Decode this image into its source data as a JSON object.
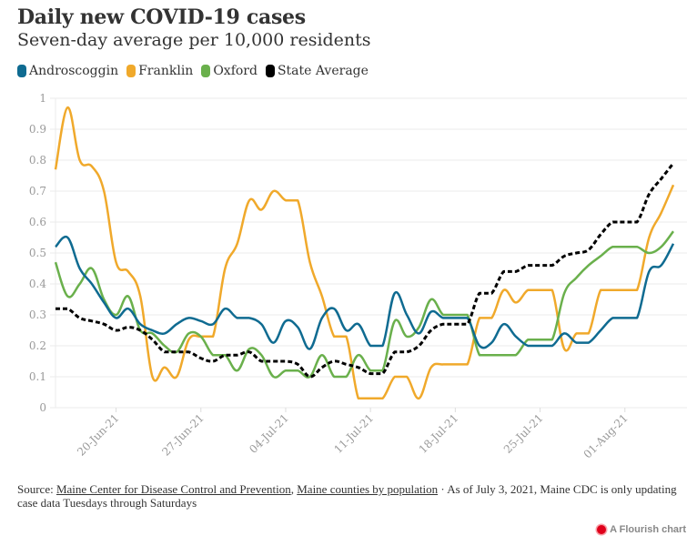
{
  "header": {
    "title": "Daily new COVID-19 cases",
    "subtitle": "Seven-day average per 10,000 residents"
  },
  "legend": [
    {
      "label": "Androscoggin",
      "color": "#0f6b91"
    },
    {
      "label": "Franklin",
      "color": "#f0a92b"
    },
    {
      "label": "Oxford",
      "color": "#6ab04c"
    },
    {
      "label": "State Average",
      "color": "#000000"
    }
  ],
  "footer": {
    "source_prefix": "Source: ",
    "link1": "Maine Center for Disease Control and Prevention",
    "sep": ", ",
    "link2": "Maine counties by population",
    "note": " · As of July 3, 2021, Maine CDC is only updating case data Tuesdays through Saturdays",
    "branding": "A Flourish chart"
  },
  "chart_data": {
    "type": "line",
    "title": "Daily new COVID-19 cases",
    "subtitle": "Seven-day average per 10,000 residents",
    "xlabel": "",
    "ylabel": "",
    "ylim": [
      0,
      1
    ],
    "yticks": [
      0,
      0.1,
      0.2,
      0.3,
      0.4,
      0.5,
      0.6,
      0.7,
      0.8,
      0.9,
      1
    ],
    "ytick_labels": [
      "0",
      "0.1",
      "0.2",
      "0.3",
      "0.4",
      "0.5",
      "0.6",
      "0.7",
      "0.8",
      "0.9",
      "1"
    ],
    "x_start": "2021-06-15",
    "x_end": "2021-08-05",
    "xticks": [
      {
        "day": 5,
        "label": "20-Jun-21"
      },
      {
        "day": 12,
        "label": "27-Jun-21"
      },
      {
        "day": 19,
        "label": "04-Jul-21"
      },
      {
        "day": 26,
        "label": "11-Jul-21"
      },
      {
        "day": 33,
        "label": "18-Jul-21"
      },
      {
        "day": 40,
        "label": "25-Jul-21"
      },
      {
        "day": 47,
        "label": "01-Aug-21"
      }
    ],
    "grid": true,
    "legend_position": "top-left",
    "series": [
      {
        "name": "Androscoggin",
        "color": "#0f6b91",
        "dashed": false,
        "values": [
          0.52,
          0.55,
          0.45,
          0.4,
          0.34,
          0.29,
          0.32,
          0.27,
          0.25,
          0.24,
          0.27,
          0.29,
          0.28,
          0.27,
          0.32,
          0.29,
          0.29,
          0.27,
          0.21,
          0.28,
          0.26,
          0.19,
          0.29,
          0.32,
          0.25,
          0.27,
          0.2,
          0.2,
          0.37,
          0.3,
          0.24,
          0.31,
          0.29,
          0.29,
          0.29,
          0.2,
          0.21,
          0.27,
          0.23,
          0.2,
          0.2,
          0.2,
          0.24,
          0.21,
          0.21,
          0.25,
          0.29,
          0.29,
          0.29,
          0.44,
          0.46,
          0.53
        ]
      },
      {
        "name": "Franklin",
        "color": "#f0a92b",
        "dashed": false,
        "values": [
          0.77,
          0.97,
          0.8,
          0.78,
          0.7,
          0.47,
          0.44,
          0.36,
          0.1,
          0.13,
          0.1,
          0.22,
          0.23,
          0.23,
          0.45,
          0.53,
          0.67,
          0.64,
          0.7,
          0.67,
          0.67,
          0.47,
          0.36,
          0.23,
          0.23,
          0.03,
          0.03,
          0.03,
          0.1,
          0.1,
          0.03,
          0.13,
          0.14,
          0.14,
          0.14,
          0.29,
          0.29,
          0.38,
          0.34,
          0.38,
          0.38,
          0.38,
          0.19,
          0.24,
          0.24,
          0.38,
          0.38,
          0.38,
          0.38,
          0.55,
          0.63,
          0.72
        ]
      },
      {
        "name": "Oxford",
        "color": "#6ab04c",
        "dashed": false,
        "values": [
          0.47,
          0.36,
          0.4,
          0.45,
          0.35,
          0.3,
          0.36,
          0.25,
          0.24,
          0.2,
          0.18,
          0.24,
          0.23,
          0.17,
          0.17,
          0.12,
          0.19,
          0.17,
          0.1,
          0.12,
          0.12,
          0.1,
          0.17,
          0.1,
          0.1,
          0.17,
          0.12,
          0.12,
          0.28,
          0.23,
          0.26,
          0.35,
          0.3,
          0.3,
          0.3,
          0.17,
          0.17,
          0.17,
          0.17,
          0.22,
          0.22,
          0.22,
          0.37,
          0.42,
          0.46,
          0.49,
          0.52,
          0.52,
          0.52,
          0.5,
          0.52,
          0.57
        ]
      },
      {
        "name": "State Average",
        "color": "#000000",
        "dashed": true,
        "values": [
          0.32,
          0.32,
          0.29,
          0.28,
          0.27,
          0.25,
          0.26,
          0.25,
          0.22,
          0.18,
          0.18,
          0.18,
          0.16,
          0.15,
          0.17,
          0.17,
          0.18,
          0.15,
          0.15,
          0.15,
          0.14,
          0.1,
          0.13,
          0.15,
          0.14,
          0.13,
          0.11,
          0.11,
          0.18,
          0.18,
          0.2,
          0.25,
          0.27,
          0.27,
          0.27,
          0.37,
          0.37,
          0.44,
          0.44,
          0.46,
          0.46,
          0.46,
          0.49,
          0.5,
          0.51,
          0.56,
          0.6,
          0.6,
          0.6,
          0.69,
          0.74,
          0.79
        ]
      }
    ]
  }
}
